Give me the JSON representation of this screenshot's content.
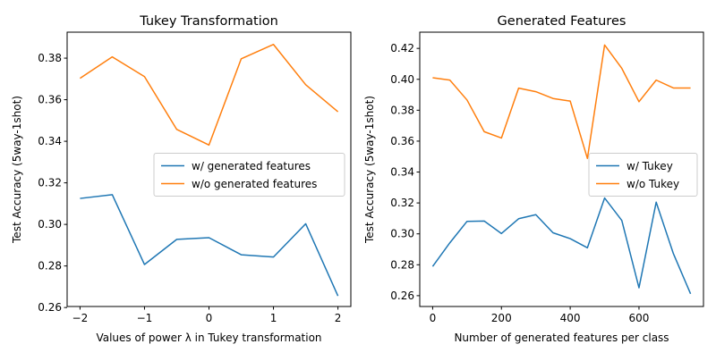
{
  "colors": {
    "series1": "#1f77b4",
    "series2": "#ff7f0e"
  },
  "chart_data": [
    {
      "type": "line",
      "title": "Tukey Transformation",
      "xlabel": "Values of power λ in Tukey transformation",
      "ylabel": "Test Accuracy (5way-1shot)",
      "x": [
        -2,
        -1.5,
        -1,
        -0.5,
        0,
        0.5,
        1,
        1.5,
        2
      ],
      "xlim": [
        -2.2,
        2.2
      ],
      "ylim": [
        0.2605,
        0.3925
      ],
      "xticks": [
        -2,
        -1,
        0,
        1,
        2
      ],
      "xtick_labels": [
        "−2",
        "−1",
        "0",
        "1",
        "2"
      ],
      "yticks": [
        0.26,
        0.28,
        0.3,
        0.32,
        0.34,
        0.36,
        0.38
      ],
      "ytick_labels": [
        "0.26",
        "0.28",
        "0.30",
        "0.32",
        "0.34",
        "0.36",
        "0.38"
      ],
      "grid": false,
      "legend": "center-right",
      "series": [
        {
          "name": "w/ generated features",
          "color": "#1f77b4",
          "values": [
            0.3125,
            0.3143,
            0.2807,
            0.2928,
            0.2936,
            0.2854,
            0.2843,
            0.3003,
            0.2656
          ]
        },
        {
          "name": "w/o generated features",
          "color": "#ff7f0e",
          "values": [
            0.3703,
            0.3806,
            0.3711,
            0.3457,
            0.3382,
            0.3797,
            0.3866,
            0.3672,
            0.3542
          ]
        }
      ]
    },
    {
      "type": "line",
      "title": "Generated Features",
      "xlabel": "Number of generated features per class",
      "ylabel": "Test Accuracy (5way-1shot)",
      "x": [
        0,
        50,
        100,
        150,
        200,
        250,
        300,
        350,
        400,
        450,
        500,
        550,
        600,
        650,
        700,
        750
      ],
      "xlim": [
        -37.5,
        787.5
      ],
      "ylim": [
        0.253,
        0.4305
      ],
      "xticks": [
        0,
        200,
        400,
        600
      ],
      "xtick_labels": [
        "0",
        "200",
        "400",
        "600"
      ],
      "yticks": [
        0.26,
        0.28,
        0.3,
        0.32,
        0.34,
        0.36,
        0.38,
        0.4,
        0.42
      ],
      "ytick_labels": [
        "0.26",
        "0.28",
        "0.30",
        "0.32",
        "0.34",
        "0.36",
        "0.38",
        "0.40",
        "0.42"
      ],
      "grid": false,
      "legend": "center-right",
      "series": [
        {
          "name": "w/ Tukey",
          "color": "#1f77b4",
          "values": [
            0.2789,
            0.2942,
            0.3081,
            0.3083,
            0.3002,
            0.3098,
            0.3124,
            0.3007,
            0.2969,
            0.291,
            0.3232,
            0.3087,
            0.2651,
            0.3205,
            0.2872,
            0.2612
          ]
        },
        {
          "name": "w/o Tukey",
          "color": "#ff7f0e",
          "values": [
            0.401,
            0.3995,
            0.3866,
            0.3661,
            0.362,
            0.3943,
            0.392,
            0.3876,
            0.3859,
            0.3488,
            0.4222,
            0.4071,
            0.3855,
            0.3995,
            0.3944,
            0.3944
          ]
        }
      ]
    }
  ]
}
